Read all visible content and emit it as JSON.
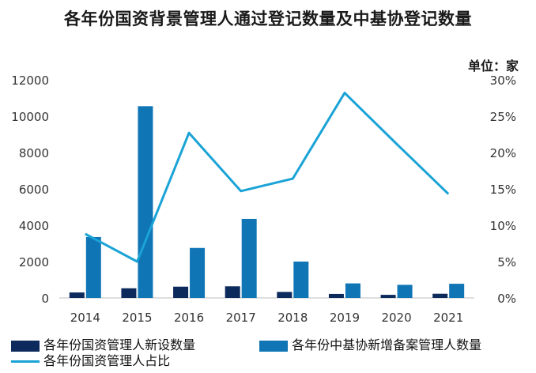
{
  "chart_data": {
    "type": "bar",
    "title": "各年份国资背景管理人通过登记数量及中基协登记数量",
    "unit_label": "单位：家",
    "categories": [
      "2014",
      "2015",
      "2016",
      "2017",
      "2018",
      "2019",
      "2020",
      "2021"
    ],
    "series": [
      {
        "name": "各年份国资管理人新设数量",
        "type": "bar",
        "axis": "left",
        "color": "#0d2a5c",
        "values": [
          300,
          530,
          620,
          640,
          330,
          220,
          170,
          230
        ]
      },
      {
        "name": "各年份中基协新增备案管理人数量",
        "type": "bar",
        "axis": "left",
        "color": "#1075b5",
        "values": [
          3350,
          10550,
          2750,
          4350,
          2000,
          800,
          720,
          780
        ]
      },
      {
        "name": "各年份国资管理人占比",
        "type": "line",
        "axis": "right",
        "color": "#1aa3d6",
        "values": [
          8.8,
          5.0,
          22.7,
          14.7,
          16.4,
          28.2,
          21.2,
          14.3
        ]
      }
    ],
    "y_left": {
      "min": 0,
      "max": 12000,
      "ticks": [
        "0",
        "2000",
        "4000",
        "6000",
        "8000",
        "10000",
        "12000"
      ]
    },
    "y_right": {
      "min": 0,
      "max": 30,
      "ticks": [
        "0%",
        "5%",
        "10%",
        "15%",
        "20%",
        "25%",
        "30%"
      ]
    },
    "legend_position": "bottom",
    "grid": false
  }
}
